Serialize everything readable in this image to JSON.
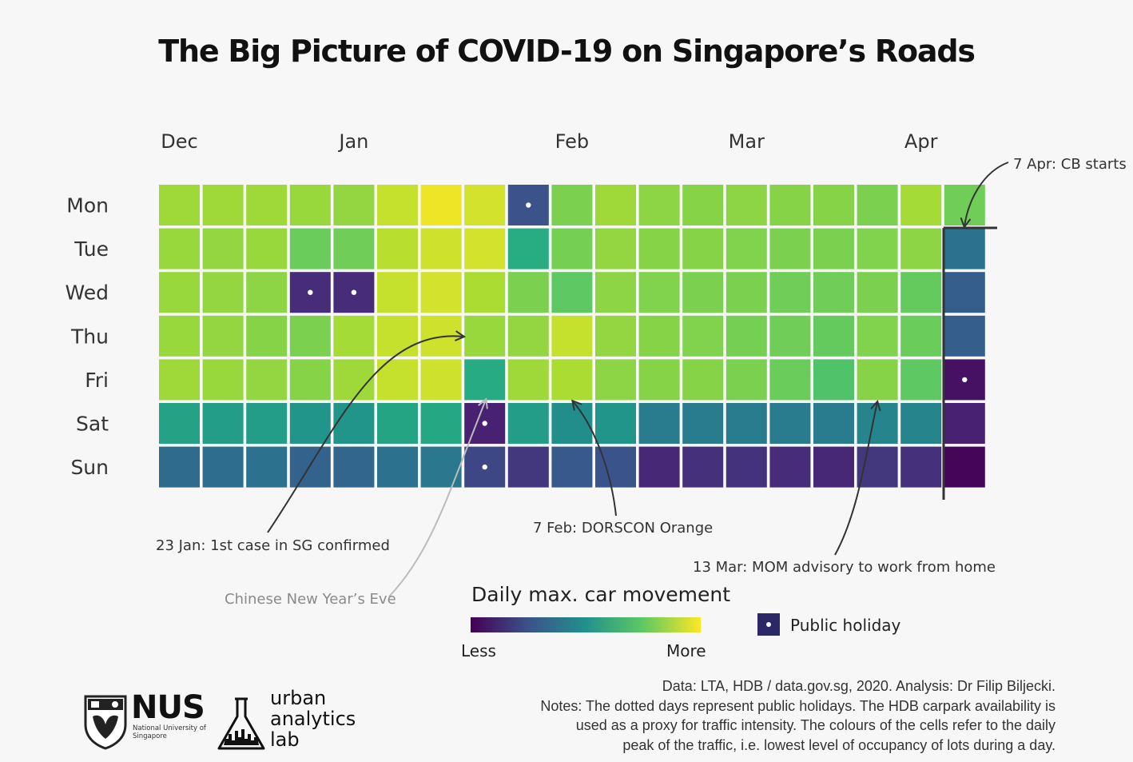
{
  "title": "The Big Picture of COVID-19 on Singapore’s Roads",
  "chart_data": {
    "type": "heatmap",
    "x_labels": [
      "Dec",
      "Jan",
      "Feb",
      "Mar",
      "Apr"
    ],
    "x_label_week_index": [
      0,
      4,
      9,
      13,
      17
    ],
    "y_labels": [
      "Mon",
      "Tue",
      "Wed",
      "Thu",
      "Fri",
      "Sat",
      "Sun"
    ],
    "weeks": 19,
    "value_scale": "0 = less, 1 = more (daily max. car movement)",
    "values": [
      [
        0.86,
        0.86,
        0.86,
        0.85,
        0.84,
        0.92,
        0.98,
        0.94,
        0.25,
        0.8,
        0.86,
        0.83,
        0.82,
        0.83,
        0.82,
        0.82,
        0.8,
        0.87,
        0.78
      ],
      [
        0.85,
        0.84,
        0.85,
        0.77,
        0.78,
        0.9,
        0.93,
        0.94,
        0.63,
        0.79,
        0.84,
        0.82,
        0.82,
        0.81,
        0.8,
        0.8,
        0.81,
        0.83,
        0.38
      ],
      [
        0.85,
        0.84,
        0.83,
        0.15,
        0.15,
        0.92,
        0.94,
        0.88,
        0.8,
        0.75,
        0.83,
        0.81,
        0.8,
        0.8,
        0.78,
        0.78,
        0.8,
        0.76,
        0.3
      ],
      [
        0.85,
        0.84,
        0.82,
        0.8,
        0.87,
        0.92,
        0.93,
        0.85,
        0.84,
        0.92,
        0.84,
        0.82,
        0.81,
        0.79,
        0.78,
        0.76,
        0.81,
        0.77,
        0.3
      ],
      [
        0.86,
        0.85,
        0.84,
        0.82,
        0.86,
        0.92,
        0.93,
        0.62,
        0.86,
        0.88,
        0.83,
        0.82,
        0.82,
        0.8,
        0.77,
        0.72,
        0.82,
        0.75,
        0.06
      ],
      [
        0.58,
        0.55,
        0.55,
        0.52,
        0.52,
        0.59,
        0.6,
        0.12,
        0.55,
        0.49,
        0.52,
        0.42,
        0.42,
        0.42,
        0.42,
        0.42,
        0.45,
        0.45,
        0.12
      ],
      [
        0.35,
        0.36,
        0.38,
        0.32,
        0.33,
        0.38,
        0.4,
        0.22,
        0.18,
        0.28,
        0.26,
        0.14,
        0.16,
        0.17,
        0.15,
        0.14,
        0.18,
        0.16,
        0.02
      ]
    ],
    "public_holidays": [
      [
        8,
        0
      ],
      [
        3,
        2
      ],
      [
        4,
        2
      ],
      [
        7,
        5
      ],
      [
        7,
        6
      ],
      [
        18,
        4
      ]
    ],
    "annotations": [
      {
        "text": "7 Apr: CB starts",
        "style": "dark"
      },
      {
        "text": "23 Jan: 1st case in SG confirmed",
        "style": "dark"
      },
      {
        "text": "Chinese New Year’s Eve",
        "style": "grey"
      },
      {
        "text": "7 Feb: DORSCON Orange",
        "style": "dark"
      },
      {
        "text": "13 Mar: MOM advisory to work from home",
        "style": "dark"
      }
    ],
    "legend": {
      "title": "Daily max. car movement",
      "low_label": "Less",
      "high_label": "More",
      "holiday_label": "Public holiday",
      "colormap": "viridis"
    }
  },
  "notes": {
    "line1": "Data: LTA, HDB / data.gov.sg, 2020. Analysis: Dr Filip Biljecki.",
    "line2": "Notes: The dotted days represent public holidays. The HDB carpark availability is",
    "line3": "used as a proxy for traffic intensity. The colours of the cells refer to the daily",
    "line4": "peak of the traffic, i.e. lowest level of occupancy of lots during a day."
  },
  "logos": {
    "nus_name": "NUS",
    "nus_subtitle": "National University of Singapore",
    "lab_line1": "urban",
    "lab_line2": "analytics",
    "lab_line3": "lab"
  }
}
